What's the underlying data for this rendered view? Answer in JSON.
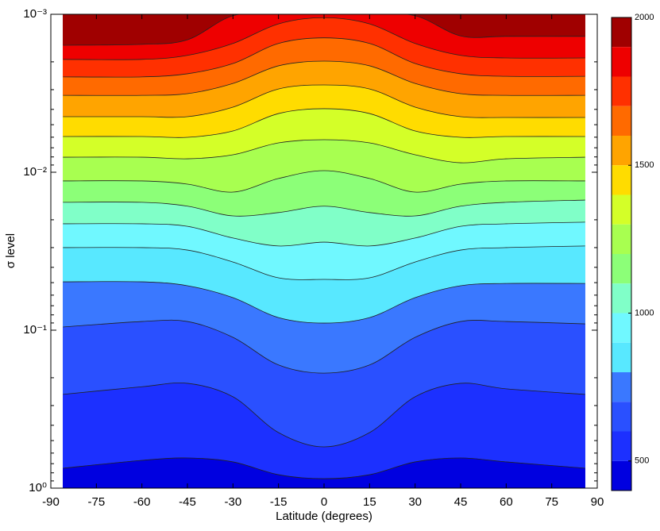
{
  "chart_data": {
    "type": "contour",
    "xlabel": "Latitude (degrees)",
    "ylabel": "σ level",
    "x": [
      -86,
      -60,
      -45,
      -30,
      -15,
      0,
      15,
      30,
      45,
      60,
      86
    ],
    "xlim": [
      -90,
      90
    ],
    "xticks": [
      -90,
      -75,
      -60,
      -45,
      -30,
      -15,
      0,
      15,
      30,
      45,
      60,
      75,
      90
    ],
    "ylim": [
      1,
      0.001
    ],
    "yscale": "log",
    "yticks": [
      {
        "value": 0.001,
        "label": "10⁻³"
      },
      {
        "value": 0.01,
        "label": "10⁻²"
      },
      {
        "value": 0.1,
        "label": "10⁻¹"
      },
      {
        "value": 1,
        "label": "10⁰"
      }
    ],
    "contours": [
      {
        "level": 1900,
        "values": [
          0.00157,
          0.00155,
          0.00145,
          0.00102,
          0.001,
          0.001,
          0.001,
          0.00102,
          0.00137,
          0.00138,
          0.00138
        ]
      },
      {
        "level": 1800,
        "values": [
          0.00193,
          0.00193,
          0.00182,
          0.00153,
          0.00115,
          0.00105,
          0.00115,
          0.00153,
          0.00182,
          0.00189,
          0.00189
        ]
      },
      {
        "level": 1700,
        "values": [
          0.00249,
          0.00249,
          0.00238,
          0.00205,
          0.00153,
          0.00141,
          0.00153,
          0.00205,
          0.00238,
          0.00247,
          0.00247
        ]
      },
      {
        "level": 1600,
        "values": [
          0.00326,
          0.00326,
          0.00318,
          0.00274,
          0.00212,
          0.00198,
          0.00212,
          0.00274,
          0.00318,
          0.00326,
          0.00326
        ]
      },
      {
        "level": 1500,
        "values": [
          0.00445,
          0.00445,
          0.00445,
          0.00387,
          0.00297,
          0.0028,
          0.00297,
          0.00387,
          0.00445,
          0.0045,
          0.0045
        ]
      },
      {
        "level": 1400,
        "values": [
          0.00594,
          0.00594,
          0.00601,
          0.00548,
          0.00425,
          0.00396,
          0.00425,
          0.00548,
          0.00601,
          0.00594,
          0.00594
        ]
      },
      {
        "level": 1300,
        "values": [
          0.00803,
          0.00803,
          0.00822,
          0.00775,
          0.00652,
          0.00622,
          0.00652,
          0.00775,
          0.00871,
          0.00822,
          0.00803
        ]
      },
      {
        "level": 1200,
        "values": [
          0.01135,
          0.01135,
          0.01189,
          0.01336,
          0.01096,
          0.00977,
          0.01096,
          0.01336,
          0.01189,
          0.01135,
          0.01135
        ]
      },
      {
        "level": 1100,
        "values": [
          0.0155,
          0.0155,
          0.0164,
          0.0189,
          0.018,
          0.0164,
          0.018,
          0.0189,
          0.0164,
          0.0155,
          0.015
        ]
      },
      {
        "level": 1000,
        "values": [
          0.0212,
          0.0212,
          0.022,
          0.0261,
          0.0293,
          0.0277,
          0.0293,
          0.0261,
          0.022,
          0.0212,
          0.0207
        ]
      },
      {
        "level": 900,
        "values": [
          0.03,
          0.03,
          0.0311,
          0.037,
          0.0466,
          0.0477,
          0.0466,
          0.037,
          0.0311,
          0.03,
          0.0293
        ]
      },
      {
        "level": 800,
        "values": [
          0.0494,
          0.0494,
          0.0523,
          0.0622,
          0.0832,
          0.0902,
          0.0832,
          0.0622,
          0.0523,
          0.0506,
          0.0506
        ]
      },
      {
        "level": 700,
        "values": [
          0.0955,
          0.0881,
          0.0881,
          0.111,
          0.166,
          0.187,
          0.166,
          0.111,
          0.0881,
          0.0881,
          0.0912
        ]
      },
      {
        "level": 600,
        "values": [
          0.255,
          0.228,
          0.217,
          0.264,
          0.445,
          0.548,
          0.445,
          0.264,
          0.217,
          0.235,
          0.255
        ]
      },
      {
        "level": 500,
        "values": [
          0.748,
          0.667,
          0.644,
          0.682,
          0.822,
          0.871,
          0.822,
          0.682,
          0.644,
          0.682,
          0.748
        ]
      }
    ],
    "band_colors": [
      "#a00000",
      "#ee0000",
      "#ff3000",
      "#ff6a00",
      "#ffa400",
      "#ffdc00",
      "#d4ff28",
      "#a8ff50",
      "#8cff78",
      "#80ffc8",
      "#70f8ff",
      "#58e8ff",
      "#3a78ff",
      "#2a50ff",
      "#1c30ff",
      "#0000e0"
    ],
    "colorbar": {
      "lim": [
        400,
        2000
      ],
      "ticks": [
        500,
        1000,
        1500,
        2000
      ]
    }
  }
}
